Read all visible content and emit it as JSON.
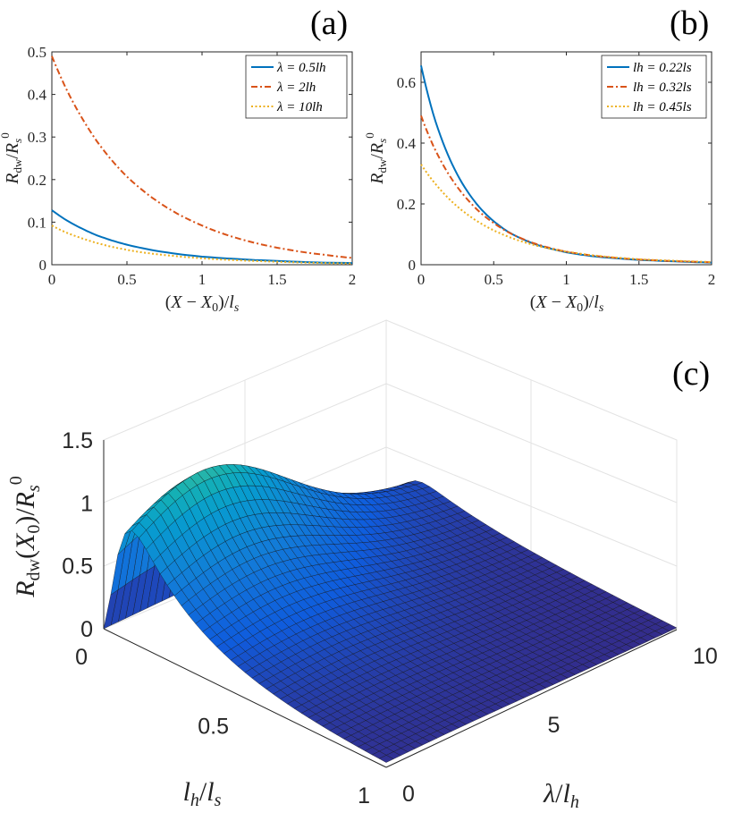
{
  "chart_data": [
    {
      "panel": "(a)",
      "type": "line",
      "xlabel": "(X − X0)/ls",
      "ylabel": "Rdw/R0s",
      "xlim": [
        0,
        2
      ],
      "ylim": [
        0,
        0.5
      ],
      "xticks": [
        "0",
        "0.5",
        "1",
        "1.5",
        "2"
      ],
      "yticks": [
        "0",
        "0.1",
        "0.2",
        "0.3",
        "0.4",
        "0.5"
      ],
      "x": [
        0,
        0.1,
        0.2,
        0.3,
        0.4,
        0.5,
        0.6,
        0.8,
        1.0,
        1.2,
        1.5,
        1.8,
        2.0
      ],
      "series": [
        {
          "name": "λ = 0.5lh",
          "color": "#0072BD",
          "style": "solid",
          "values": [
            0.128,
            0.104,
            0.085,
            0.069,
            0.057,
            0.047,
            0.039,
            0.027,
            0.019,
            0.014,
            0.009,
            0.005,
            0.004
          ]
        },
        {
          "name": "λ = 2lh",
          "color": "#D95319",
          "style": "dashdot",
          "values": [
            0.49,
            0.41,
            0.345,
            0.29,
            0.245,
            0.207,
            0.176,
            0.127,
            0.092,
            0.066,
            0.04,
            0.024,
            0.016
          ]
        },
        {
          "name": "λ = 10lh",
          "color": "#EDB120",
          "style": "dotted",
          "values": [
            0.092,
            0.075,
            0.062,
            0.051,
            0.042,
            0.035,
            0.029,
            0.021,
            0.015,
            0.011,
            0.007,
            0.004,
            0.003
          ]
        }
      ]
    },
    {
      "panel": "(b)",
      "type": "line",
      "xlabel": "(X − X0)/ls",
      "ylabel": "Rdw/R0s",
      "xlim": [
        0,
        2
      ],
      "ylim": [
        0,
        0.7
      ],
      "xticks": [
        "0",
        "0.5",
        "1",
        "1.5",
        "2"
      ],
      "yticks": [
        "0",
        "0.2",
        "0.4",
        "0.6"
      ],
      "x": [
        0,
        0.1,
        0.2,
        0.3,
        0.4,
        0.5,
        0.6,
        0.8,
        1.0,
        1.2,
        1.5,
        1.8,
        2.0
      ],
      "series": [
        {
          "name": "lh = 0.22ls",
          "color": "#0072BD",
          "style": "solid",
          "values": [
            0.655,
            0.47,
            0.345,
            0.255,
            0.19,
            0.143,
            0.108,
            0.065,
            0.041,
            0.027,
            0.016,
            0.01,
            0.007
          ]
        },
        {
          "name": "lh = 0.32ls",
          "color": "#D95319",
          "style": "dashdot",
          "values": [
            0.49,
            0.375,
            0.29,
            0.225,
            0.175,
            0.137,
            0.107,
            0.067,
            0.043,
            0.029,
            0.017,
            0.011,
            0.008
          ]
        },
        {
          "name": "lh = 0.45ls",
          "color": "#EDB120",
          "style": "dotted",
          "values": [
            0.33,
            0.265,
            0.213,
            0.172,
            0.139,
            0.113,
            0.092,
            0.062,
            0.043,
            0.03,
            0.018,
            0.012,
            0.009
          ]
        }
      ]
    },
    {
      "panel": "(c)",
      "type": "surface",
      "zlabel": "Rdw(X0)/R0s",
      "xlabel": "lh/ls",
      "ylabel": "λ/lh",
      "zlim": [
        0,
        1.5
      ],
      "xlim": [
        0,
        1
      ],
      "ylim": [
        0,
        10
      ],
      "zticks": [
        "0",
        "0.5",
        "1",
        "1.5"
      ],
      "xticks": [
        "0",
        "0.5",
        "1"
      ],
      "yticks": [
        "0",
        "5",
        "10"
      ],
      "colormap": "parula",
      "description_of_trend": "Peak near lh/ls ≈ 0.1 and λ/lh ≈ 2–3 (≈1.5); ridge decays toward 0 as lh/ls → 1"
    }
  ]
}
